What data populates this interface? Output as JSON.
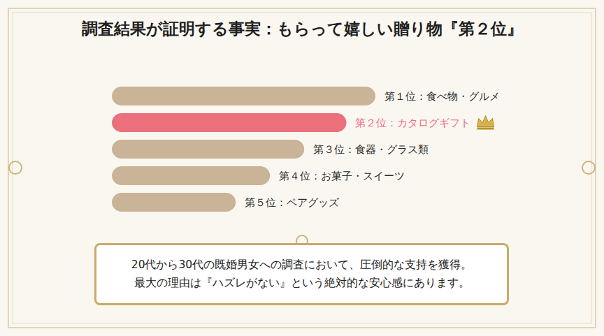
{
  "chart_data": {
    "type": "bar",
    "orientation": "horizontal",
    "title": "調査結果が証明する事実：もらって嬉しい贈り物『第２位』",
    "categories": [
      "第１位：食べ物・グルメ",
      "第２位：カタログギフト",
      "第３位：食器・グラス類",
      "第４位：お菓子・スイーツ",
      "第５位：ペアグッズ"
    ],
    "values": [
      100,
      89,
      73,
      60,
      47
    ],
    "colors": [
      "#c9b497",
      "#ec6f7c",
      "#c9b497",
      "#c9b497",
      "#c9b497"
    ],
    "xlim": [
      0,
      100
    ],
    "tick_labels": false,
    "grid": false,
    "data_labels": false,
    "annotations": [
      "20代から30代の既婚男女への調査において、圧倒的な支持を獲得。",
      "最大の理由は『ハズレがない』という絶対的な安心感にあります。"
    ]
  }
}
